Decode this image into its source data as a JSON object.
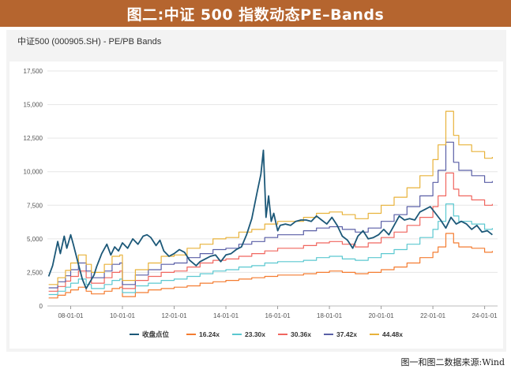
{
  "banner": {
    "title": "图二:中证 500 指数动态PE–Bands"
  },
  "panel": {
    "subtitle": "中证500 (000905.SH) - PE/PB Bands"
  },
  "source_note": "图一和图二数据来源:Wind",
  "chart_data": {
    "type": "line",
    "title": "中证500 (000905.SH) - PE/PB Bands",
    "xlabel": "",
    "ylabel": "",
    "xlim": [
      2007.1,
      2024.5
    ],
    "ylim": [
      0,
      17500
    ],
    "yticks": [
      0,
      2500,
      5000,
      7500,
      10000,
      12500,
      15000,
      17500
    ],
    "ytick_labels": [
      "0",
      "2,500",
      "5,000",
      "7,500",
      "10,000",
      "12,500",
      "15,000",
      "17,500"
    ],
    "xticks": [
      2008,
      2010,
      2012,
      2014,
      2016,
      2018,
      2020,
      2022,
      2024
    ],
    "xtick_labels": [
      "08-01-01",
      "10-01-01",
      "12-01-01",
      "14-01-01",
      "16-01-01",
      "18-01-01",
      "20-01-01",
      "22-01-01",
      "24-01-01"
    ],
    "legend_position": "bottom",
    "series": [
      {
        "name": "收盘点位",
        "color": "#1c5878",
        "x": [
          2007.15,
          2007.3,
          2007.5,
          2007.6,
          2007.75,
          2007.85,
          2008.0,
          2008.1,
          2008.3,
          2008.45,
          2008.6,
          2008.75,
          2008.9,
          2009.0,
          2009.2,
          2009.4,
          2009.55,
          2009.7,
          2009.85,
          2010.0,
          2010.2,
          2010.4,
          2010.6,
          2010.8,
          2010.95,
          2011.1,
          2011.3,
          2011.45,
          2011.6,
          2011.8,
          2012.0,
          2012.2,
          2012.4,
          2012.6,
          2012.85,
          2013.0,
          2013.2,
          2013.4,
          2013.6,
          2013.8,
          2014.0,
          2014.2,
          2014.4,
          2014.6,
          2014.8,
          2015.0,
          2015.2,
          2015.35,
          2015.45,
          2015.55,
          2015.65,
          2015.75,
          2015.85,
          2016.0,
          2016.1,
          2016.3,
          2016.5,
          2016.7,
          2016.9,
          2017.1,
          2017.3,
          2017.5,
          2017.7,
          2017.9,
          2018.1,
          2018.3,
          2018.5,
          2018.7,
          2018.9,
          2019.1,
          2019.3,
          2019.5,
          2019.7,
          2019.9,
          2020.1,
          2020.3,
          2020.5,
          2020.7,
          2020.9,
          2021.1,
          2021.3,
          2021.5,
          2021.7,
          2021.9,
          2022.1,
          2022.3,
          2022.5,
          2022.7,
          2022.9,
          2023.1,
          2023.3,
          2023.5,
          2023.7,
          2023.9,
          2024.1,
          2024.3
        ],
        "values": [
          2200,
          3000,
          4800,
          3900,
          5200,
          4300,
          5300,
          4600,
          3100,
          2000,
          1300,
          1800,
          2300,
          2900,
          3900,
          4600,
          3800,
          4400,
          4100,
          4700,
          4300,
          5000,
          4600,
          5200,
          5300,
          5100,
          4500,
          4900,
          4100,
          3700,
          3900,
          4200,
          4000,
          3400,
          3000,
          3300,
          3500,
          3700,
          3800,
          3300,
          3800,
          3900,
          4200,
          4400,
          5300,
          6500,
          8400,
          9800,
          11600,
          6600,
          8200,
          6300,
          6900,
          5600,
          6000,
          6100,
          6000,
          6300,
          6400,
          6400,
          6300,
          6700,
          6400,
          6100,
          6600,
          6000,
          5200,
          4900,
          4300,
          5200,
          5600,
          5000,
          5100,
          5300,
          5700,
          5300,
          6000,
          6700,
          6400,
          6500,
          6400,
          7000,
          7200,
          7400,
          6900,
          6400,
          5800,
          6600,
          6100,
          6300,
          6100,
          5700,
          6000,
          5500,
          5600,
          5300
        ]
      },
      {
        "name": "16.24x",
        "color": "#f47c30",
        "x": [
          2007.15,
          2007.5,
          2007.8,
          2008.0,
          2008.3,
          2008.6,
          2008.8,
          2009.0,
          2009.3,
          2009.6,
          2009.9,
          2010.0,
          2010.5,
          2011.0,
          2011.5,
          2012.0,
          2012.5,
          2013.0,
          2013.5,
          2014.0,
          2014.5,
          2015.0,
          2015.5,
          2016.0,
          2016.5,
          2017.0,
          2017.5,
          2018.0,
          2018.5,
          2019.0,
          2019.5,
          2020.0,
          2020.5,
          2021.0,
          2021.5,
          2022.0,
          2022.2,
          2022.5,
          2022.8,
          2023.0,
          2023.5,
          2024.0,
          2024.3
        ],
        "values": [
          600,
          800,
          1000,
          1200,
          1400,
          1100,
          900,
          900,
          1100,
          1300,
          1400,
          700,
          1000,
          1200,
          1300,
          1400,
          1500,
          1700,
          1800,
          1900,
          2000,
          2100,
          2200,
          2300,
          2300,
          2400,
          2500,
          2600,
          2500,
          2400,
          2500,
          2700,
          2900,
          3200,
          3600,
          4000,
          4400,
          5400,
          4700,
          4400,
          4300,
          4000,
          4100
        ]
      },
      {
        "name": "23.30x",
        "color": "#5bc8d0",
        "x": [
          2007.15,
          2007.5,
          2007.8,
          2008.0,
          2008.3,
          2008.6,
          2008.8,
          2009.0,
          2009.3,
          2009.6,
          2009.9,
          2010.0,
          2010.5,
          2011.0,
          2011.5,
          2012.0,
          2012.5,
          2013.0,
          2013.5,
          2014.0,
          2014.5,
          2015.0,
          2015.5,
          2016.0,
          2016.5,
          2017.0,
          2017.5,
          2018.0,
          2018.5,
          2019.0,
          2019.5,
          2020.0,
          2020.5,
          2021.0,
          2021.5,
          2022.0,
          2022.2,
          2022.5,
          2022.8,
          2023.0,
          2023.5,
          2024.0,
          2024.3
        ],
        "values": [
          850,
          1100,
          1400,
          1700,
          2000,
          1600,
          1300,
          1300,
          1600,
          1900,
          2000,
          1000,
          1500,
          1700,
          1900,
          2000,
          2200,
          2400,
          2600,
          2700,
          2900,
          3000,
          3200,
          3300,
          3300,
          3400,
          3600,
          3700,
          3500,
          3400,
          3600,
          3900,
          4200,
          4600,
          5100,
          5700,
          6300,
          7600,
          6700,
          6300,
          6100,
          5700,
          5800
        ]
      },
      {
        "name": "30.36x",
        "color": "#f0665f",
        "x": [
          2007.15,
          2007.5,
          2007.8,
          2008.0,
          2008.3,
          2008.6,
          2008.8,
          2009.0,
          2009.3,
          2009.6,
          2009.9,
          2010.0,
          2010.5,
          2011.0,
          2011.5,
          2012.0,
          2012.5,
          2013.0,
          2013.5,
          2014.0,
          2014.5,
          2015.0,
          2015.5,
          2016.0,
          2016.5,
          2017.0,
          2017.5,
          2018.0,
          2018.5,
          2019.0,
          2019.5,
          2020.0,
          2020.5,
          2021.0,
          2021.5,
          2022.0,
          2022.2,
          2022.5,
          2022.8,
          2023.0,
          2023.5,
          2024.0,
          2024.3
        ],
        "values": [
          1100,
          1450,
          1850,
          2200,
          2600,
          2100,
          1700,
          1700,
          2100,
          2500,
          2600,
          1300,
          1900,
          2200,
          2500,
          2600,
          2900,
          3200,
          3400,
          3500,
          3700,
          3900,
          4100,
          4300,
          4300,
          4500,
          4700,
          4800,
          4600,
          4400,
          4700,
          5100,
          5500,
          6000,
          6600,
          7400,
          8200,
          9900,
          8700,
          8200,
          7900,
          7500,
          7600
        ]
      },
      {
        "name": "37.42x",
        "color": "#5a5fa6",
        "x": [
          2007.15,
          2007.5,
          2007.8,
          2008.0,
          2008.3,
          2008.6,
          2008.8,
          2009.0,
          2009.3,
          2009.6,
          2009.9,
          2010.0,
          2010.5,
          2011.0,
          2011.5,
          2012.0,
          2012.5,
          2013.0,
          2013.5,
          2014.0,
          2014.5,
          2015.0,
          2015.5,
          2016.0,
          2016.5,
          2017.0,
          2017.5,
          2018.0,
          2018.5,
          2019.0,
          2019.5,
          2020.0,
          2020.5,
          2021.0,
          2021.5,
          2022.0,
          2022.2,
          2022.5,
          2022.8,
          2023.0,
          2023.5,
          2024.0,
          2024.3
        ],
        "values": [
          1350,
          1800,
          2250,
          2700,
          3200,
          2600,
          2100,
          2100,
          2600,
          3100,
          3200,
          1600,
          2300,
          2700,
          3100,
          3200,
          3600,
          3900,
          4200,
          4300,
          4600,
          4800,
          5100,
          5300,
          5300,
          5600,
          5800,
          5900,
          5700,
          5500,
          5800,
          6300,
          6800,
          7400,
          8200,
          9200,
          10100,
          12200,
          10700,
          10100,
          9700,
          9200,
          9300
        ]
      },
      {
        "name": "44.48x",
        "color": "#e8b23a",
        "x": [
          2007.15,
          2007.5,
          2007.8,
          2008.0,
          2008.3,
          2008.6,
          2008.8,
          2009.0,
          2009.3,
          2009.6,
          2009.9,
          2010.0,
          2010.5,
          2011.0,
          2011.5,
          2012.0,
          2012.5,
          2013.0,
          2013.5,
          2014.0,
          2014.5,
          2015.0,
          2015.5,
          2016.0,
          2016.5,
          2017.0,
          2017.5,
          2018.0,
          2018.5,
          2019.0,
          2019.5,
          2020.0,
          2020.5,
          2021.0,
          2021.5,
          2022.0,
          2022.2,
          2022.5,
          2022.8,
          2023.0,
          2023.5,
          2024.0,
          2024.3
        ],
        "values": [
          1600,
          2100,
          2650,
          3200,
          3800,
          3100,
          2500,
          2500,
          3100,
          3700,
          3800,
          1900,
          2700,
          3200,
          3700,
          3800,
          4300,
          4600,
          5000,
          5100,
          5500,
          5700,
          6100,
          6300,
          6300,
          6600,
          6900,
          7000,
          6800,
          6500,
          6900,
          7500,
          8100,
          8800,
          9700,
          10900,
          12000,
          14500,
          12700,
          12000,
          11500,
          11000,
          11100
        ]
      }
    ]
  }
}
